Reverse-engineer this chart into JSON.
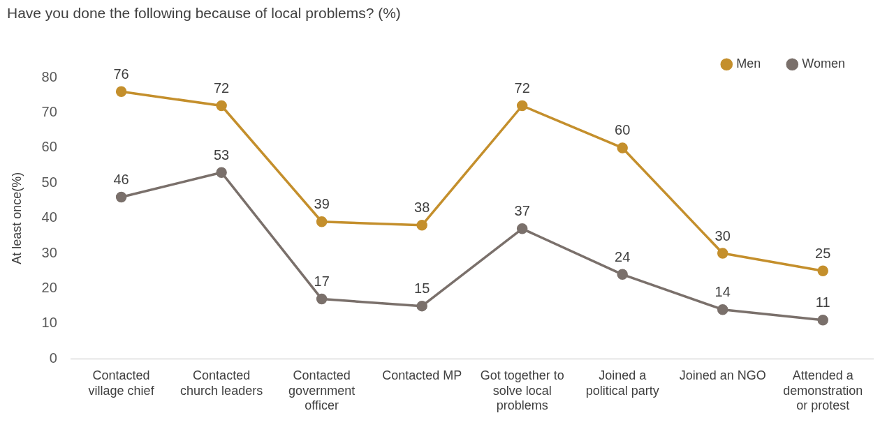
{
  "chart_data": {
    "type": "line",
    "title": "Have you done the following because of local problems? (%)",
    "ylabel": "At least once(%)",
    "categories": [
      "Contacted village chief",
      "Contacted church leaders",
      "Contacted government officer",
      "Contacted MP",
      "Got together to solve local problems",
      "Joined a political party",
      "Joined an NGO",
      "Attended a demonstration or protest"
    ],
    "series": [
      {
        "name": "Men",
        "color": "#c48f2c",
        "values": [
          76,
          72,
          39,
          38,
          72,
          60,
          30,
          25
        ]
      },
      {
        "name": "Women",
        "color": "#7a706b",
        "values": [
          46,
          53,
          17,
          15,
          37,
          24,
          14,
          11
        ]
      }
    ],
    "ylim": [
      0,
      80
    ],
    "yticks": [
      0,
      10,
      20,
      30,
      40,
      50,
      60,
      70,
      80
    ],
    "grid": false,
    "legend": "top right",
    "marker": "circle",
    "line_style": "solid",
    "data_labels": true
  }
}
